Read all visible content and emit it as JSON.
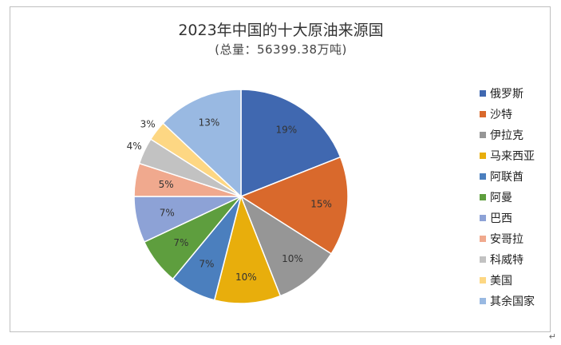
{
  "chart_data": {
    "type": "pie",
    "title": "2023年中国的十大原油来源国",
    "subtitle": "(总量：56399.38万吨)",
    "legend_position": "right",
    "slices": [
      {
        "name": "俄罗斯",
        "value": 19,
        "label": "19%",
        "color": "#4068B0"
      },
      {
        "name": "沙特",
        "value": 15,
        "label": "15%",
        "color": "#D9692C"
      },
      {
        "name": "伊拉克",
        "value": 10,
        "label": "10%",
        "color": "#969696"
      },
      {
        "name": "马来西亚",
        "value": 10,
        "label": "10%",
        "color": "#E8AE0C"
      },
      {
        "name": "阿联酋",
        "value": 7,
        "label": "7%",
        "color": "#4B7FBE"
      },
      {
        "name": "阿曼",
        "value": 7,
        "label": "7%",
        "color": "#5E9E3E"
      },
      {
        "name": "巴西",
        "value": 7,
        "label": "7%",
        "color": "#8DA2D6"
      },
      {
        "name": "安哥拉",
        "value": 5,
        "label": "5%",
        "color": "#F0A98E"
      },
      {
        "name": "科威特",
        "value": 4,
        "label": "4%",
        "color": "#C2C2C2"
      },
      {
        "name": "美国",
        "value": 3,
        "label": "3%",
        "color": "#FDD783"
      },
      {
        "name": "其余国家",
        "value": 13,
        "label": "13%",
        "color": "#99B9E2"
      }
    ]
  },
  "footer": {
    "return_mark": "↵"
  }
}
